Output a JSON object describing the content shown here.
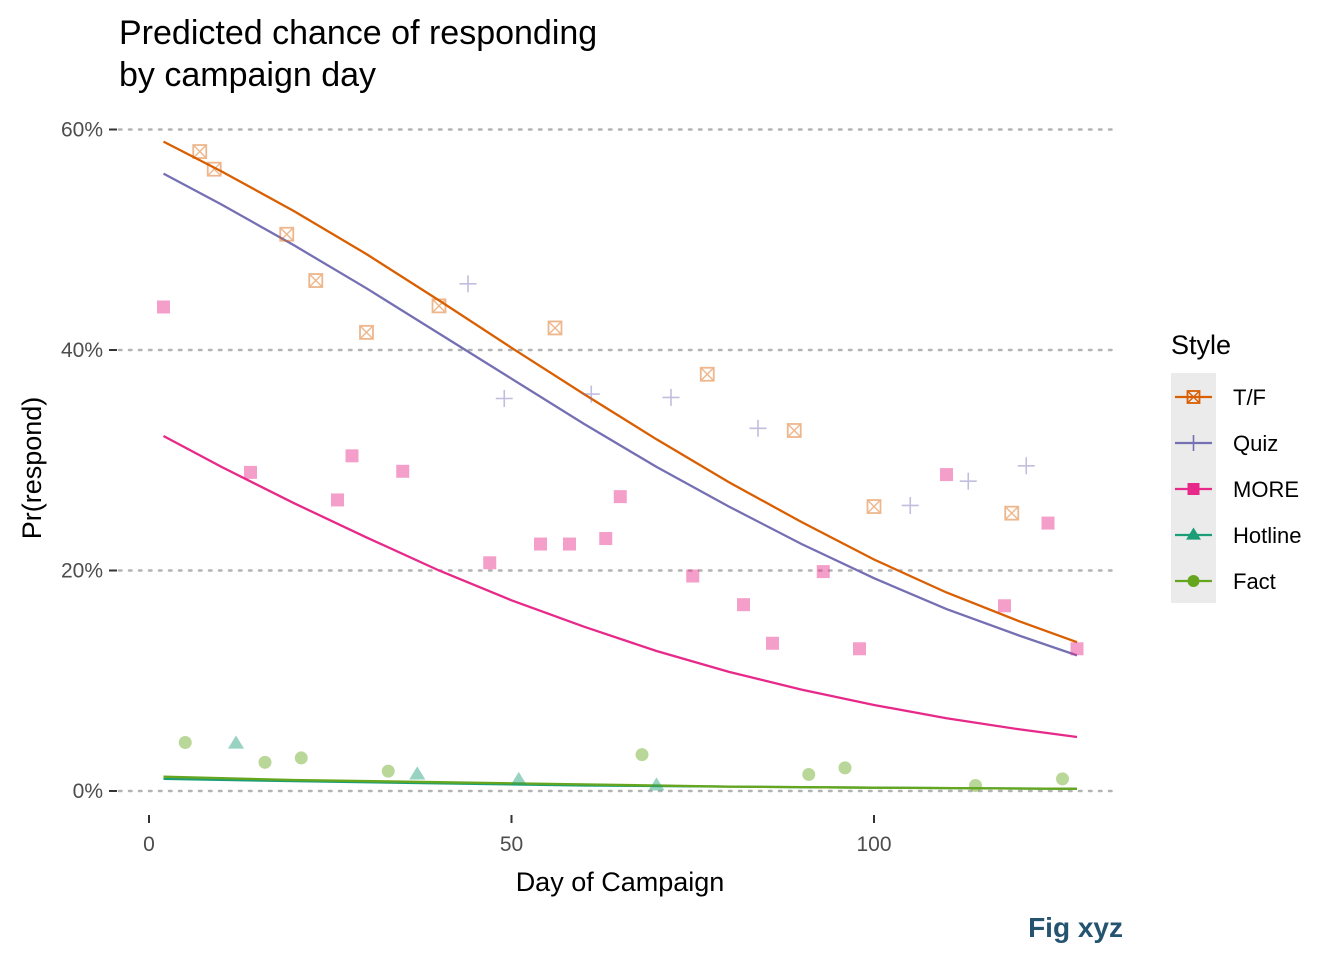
{
  "chart_data": {
    "type": "scatter",
    "title": [
      "Predicted chance of responding",
      "by campaign day"
    ],
    "xlabel": "Day of Campaign",
    "ylabel": "Pr(respond)",
    "caption": "Fig xyz",
    "xlim": [
      -2,
      133
    ],
    "ylim": [
      0,
      0.6
    ],
    "x_ticks": [
      0,
      50,
      100
    ],
    "x_tick_labels": [
      "0",
      "50",
      "100"
    ],
    "y_ticks": [
      0,
      0.2,
      0.4,
      0.6
    ],
    "y_tick_labels": [
      "0%",
      "20%",
      "40%",
      "60%"
    ],
    "grid": "horizontal-dotted",
    "legend": {
      "title": "Style",
      "position": "right",
      "entries": [
        "T/F",
        "Quiz",
        "MORE",
        "Hotline",
        "Fact"
      ]
    },
    "series": [
      {
        "name": "T/F",
        "color": "#d95f02",
        "marker": "square-x",
        "points": [
          [
            7,
            0.58
          ],
          [
            9,
            0.564
          ],
          [
            19,
            0.505
          ],
          [
            23,
            0.463
          ],
          [
            30,
            0.416
          ],
          [
            40,
            0.44
          ],
          [
            56,
            0.42
          ],
          [
            77,
            0.378
          ],
          [
            89,
            0.327
          ],
          [
            100,
            0.258
          ],
          [
            119,
            0.252
          ]
        ],
        "fit": [
          [
            2,
            0.589
          ],
          [
            10,
            0.562
          ],
          [
            20,
            0.526
          ],
          [
            30,
            0.487
          ],
          [
            40,
            0.445
          ],
          [
            50,
            0.402
          ],
          [
            60,
            0.36
          ],
          [
            70,
            0.319
          ],
          [
            80,
            0.28
          ],
          [
            90,
            0.244
          ],
          [
            100,
            0.21
          ],
          [
            110,
            0.18
          ],
          [
            120,
            0.154
          ],
          [
            128,
            0.135
          ]
        ]
      },
      {
        "name": "Quiz",
        "color": "#7570b3",
        "marker": "plus",
        "points": [
          [
            44,
            0.46
          ],
          [
            49,
            0.356
          ],
          [
            61,
            0.36
          ],
          [
            72,
            0.357
          ],
          [
            84,
            0.329
          ],
          [
            105,
            0.259
          ],
          [
            113,
            0.281
          ],
          [
            121,
            0.295
          ]
        ],
        "fit": [
          [
            2,
            0.56
          ],
          [
            10,
            0.532
          ],
          [
            20,
            0.495
          ],
          [
            30,
            0.456
          ],
          [
            40,
            0.415
          ],
          [
            50,
            0.374
          ],
          [
            60,
            0.333
          ],
          [
            70,
            0.294
          ],
          [
            80,
            0.258
          ],
          [
            90,
            0.224
          ],
          [
            100,
            0.193
          ],
          [
            110,
            0.165
          ],
          [
            120,
            0.141
          ],
          [
            128,
            0.123
          ]
        ]
      },
      {
        "name": "MORE",
        "color": "#e7298a",
        "marker": "square",
        "points": [
          [
            2,
            0.439
          ],
          [
            14,
            0.289
          ],
          [
            26,
            0.264
          ],
          [
            28,
            0.304
          ],
          [
            35,
            0.29
          ],
          [
            47,
            0.207
          ],
          [
            54,
            0.224
          ],
          [
            58,
            0.224
          ],
          [
            63,
            0.229
          ],
          [
            65,
            0.267
          ],
          [
            75,
            0.195
          ],
          [
            82,
            0.169
          ],
          [
            86,
            0.134
          ],
          [
            93,
            0.199
          ],
          [
            98,
            0.129
          ],
          [
            110,
            0.287
          ],
          [
            118,
            0.168
          ],
          [
            124,
            0.243
          ],
          [
            128,
            0.129
          ]
        ],
        "fit": [
          [
            2,
            0.322
          ],
          [
            10,
            0.294
          ],
          [
            20,
            0.261
          ],
          [
            30,
            0.23
          ],
          [
            40,
            0.2
          ],
          [
            50,
            0.173
          ],
          [
            60,
            0.149
          ],
          [
            70,
            0.127
          ],
          [
            80,
            0.108
          ],
          [
            90,
            0.092
          ],
          [
            100,
            0.078
          ],
          [
            110,
            0.066
          ],
          [
            120,
            0.056
          ],
          [
            128,
            0.049
          ]
        ]
      },
      {
        "name": "Hotline",
        "color": "#1b9e77",
        "marker": "triangle",
        "points": [
          [
            12,
            0.043
          ],
          [
            37,
            0.015
          ],
          [
            51,
            0.01
          ],
          [
            70,
            0.005
          ]
        ],
        "fit": [
          [
            2,
            0.011
          ],
          [
            20,
            0.009
          ],
          [
            40,
            0.007
          ],
          [
            60,
            0.005
          ],
          [
            80,
            0.004
          ],
          [
            100,
            0.003
          ],
          [
            128,
            0.002
          ]
        ]
      },
      {
        "name": "Fact",
        "color": "#66a61e",
        "marker": "circle",
        "points": [
          [
            5,
            0.044
          ],
          [
            16,
            0.026
          ],
          [
            21,
            0.03
          ],
          [
            33,
            0.018
          ],
          [
            68,
            0.033
          ],
          [
            91,
            0.015
          ],
          [
            96,
            0.021
          ],
          [
            114,
            0.005
          ],
          [
            126,
            0.011
          ]
        ],
        "fit": [
          [
            2,
            0.013
          ],
          [
            20,
            0.01
          ],
          [
            40,
            0.008
          ],
          [
            60,
            0.006
          ],
          [
            80,
            0.004
          ],
          [
            100,
            0.003
          ],
          [
            128,
            0.002
          ]
        ]
      }
    ]
  }
}
